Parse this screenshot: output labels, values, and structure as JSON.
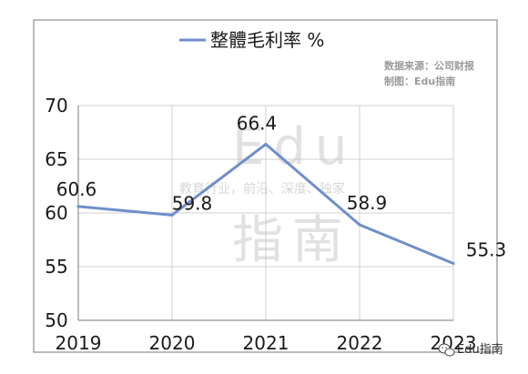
{
  "chart_data": {
    "type": "line",
    "title": "",
    "x": [
      "2019",
      "2020",
      "2021",
      "2022",
      "2023"
    ],
    "series": [
      {
        "name": "整體毛利率 %",
        "values": [
          60.6,
          59.8,
          66.4,
          58.9,
          55.3
        ],
        "color": "#6f8fc9"
      }
    ],
    "data_labels": [
      "60.6",
      "59.8",
      "66.4",
      "58.9",
      "55.3"
    ],
    "yticks": [
      "50",
      "55",
      "60",
      "65",
      "70"
    ],
    "ylim": [
      50,
      70
    ],
    "grid": true,
    "legend_position": "top"
  },
  "source": {
    "line1": "数据来源：公司财报",
    "line2": "制图：Edu指南"
  },
  "watermark": {
    "big1": "Edu",
    "small": "教育行业，前沿、深度、独家",
    "big2": "指南"
  },
  "corner_badge": {
    "text": "Edu指南",
    "icon": "wechat-icon"
  }
}
